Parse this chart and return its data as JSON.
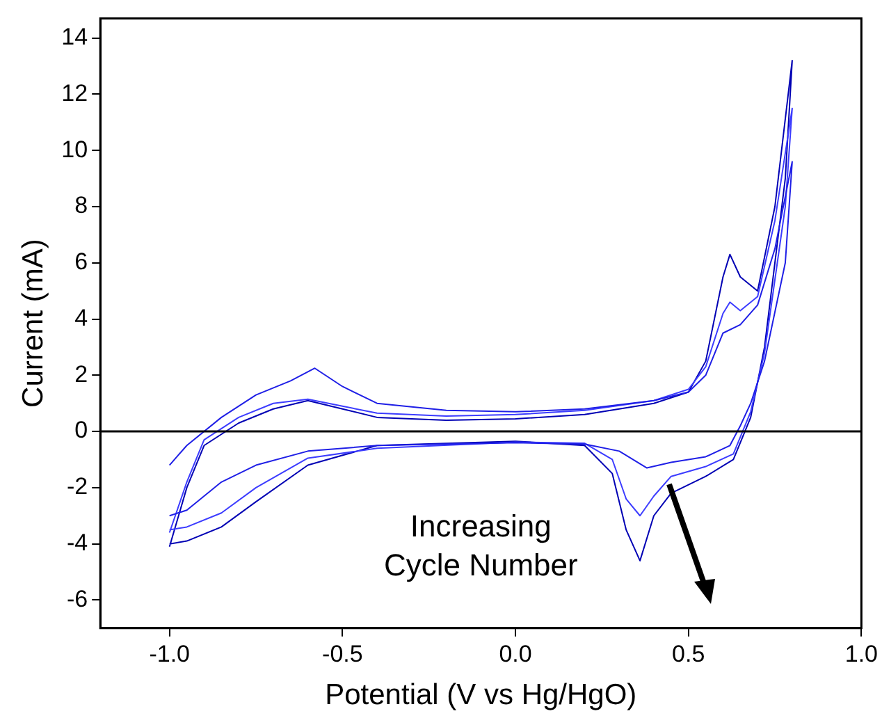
{
  "chart_data": {
    "type": "line",
    "xlabel": "Potential (V vs Hg/HgO)",
    "ylabel": "Current (mA)",
    "xlim": [
      -1.2,
      1.0
    ],
    "xticks": [
      {
        "value": -1.0,
        "label": "-1.0"
      },
      {
        "value": -0.5,
        "label": "-0.5"
      },
      {
        "value": 0,
        "label": "0.0"
      },
      {
        "value": 0.5,
        "label": "0.5"
      },
      {
        "value": 1.0,
        "label": "1.0"
      }
    ],
    "ylim": [
      -7,
      14.7
    ],
    "yticks": [
      -6,
      -4,
      -2,
      0,
      2,
      4,
      6,
      8,
      10,
      12,
      14
    ],
    "grid": false,
    "legend": false,
    "marker": "none",
    "line_style": "solid",
    "ref_lines": [
      {
        "axis": "y",
        "value": 0,
        "color": "#000000"
      }
    ],
    "annotations": [
      "Increasing Cycle Number"
    ],
    "series": [
      {
        "color": "#1f1fe6",
        "x": [
          -1.0,
          -0.95,
          -0.85,
          -0.75,
          -0.65,
          -0.58,
          -0.5,
          -0.4,
          -0.2,
          0,
          0.2,
          0.4,
          0.5,
          0.55,
          0.6,
          0.65,
          0.7,
          0.75,
          0.8,
          0.78,
          0.72,
          0.68,
          0.65,
          0.62,
          0.55,
          0.45,
          0.38,
          0.3,
          0.2,
          0,
          -0.4,
          -0.6,
          -0.75,
          -0.85,
          -0.95,
          -1.0
        ],
        "values": [
          -1.2,
          -0.5,
          0.5,
          1.3,
          1.8,
          2.25,
          1.6,
          1.0,
          0.75,
          0.7,
          0.8,
          1.1,
          1.4,
          2.0,
          3.5,
          3.8,
          4.5,
          6.5,
          9.6,
          6.0,
          2.5,
          1.0,
          0.2,
          -0.5,
          -0.9,
          -1.1,
          -1.3,
          -0.7,
          -0.45,
          -0.4,
          -0.5,
          -0.7,
          -1.2,
          -1.8,
          -2.8,
          -3.0
        ]
      },
      {
        "color": "#3c3cff",
        "x": [
          -1.0,
          -0.95,
          -0.9,
          -0.8,
          -0.7,
          -0.6,
          -0.5,
          -0.4,
          -0.2,
          0,
          0.2,
          0.4,
          0.5,
          0.55,
          0.6,
          0.62,
          0.65,
          0.7,
          0.75,
          0.8,
          0.78,
          0.72,
          0.68,
          0.63,
          0.55,
          0.45,
          0.4,
          0.36,
          0.32,
          0.28,
          0.2,
          0,
          -0.4,
          -0.6,
          -0.75,
          -0.85,
          -0.95,
          -1.0
        ],
        "values": [
          -3.6,
          -1.8,
          -0.3,
          0.5,
          1.0,
          1.15,
          0.9,
          0.65,
          0.55,
          0.6,
          0.75,
          1.1,
          1.5,
          2.3,
          4.2,
          4.6,
          4.3,
          4.8,
          7.5,
          11.5,
          8.0,
          2.8,
          0.7,
          -0.8,
          -1.25,
          -1.6,
          -2.3,
          -3.0,
          -2.4,
          -1.0,
          -0.42,
          -0.38,
          -0.6,
          -0.95,
          -2.0,
          -2.9,
          -3.4,
          -3.5
        ]
      },
      {
        "color": "#0000b4",
        "x": [
          -1.0,
          -0.95,
          -0.9,
          -0.8,
          -0.7,
          -0.6,
          -0.5,
          -0.4,
          -0.2,
          0,
          0.2,
          0.4,
          0.5,
          0.55,
          0.6,
          0.62,
          0.65,
          0.7,
          0.75,
          0.8,
          0.78,
          0.72,
          0.68,
          0.63,
          0.55,
          0.45,
          0.4,
          0.36,
          0.32,
          0.28,
          0.2,
          0,
          -0.4,
          -0.6,
          -0.75,
          -0.85,
          -0.95,
          -1.0
        ],
        "values": [
          -4.1,
          -2.0,
          -0.5,
          0.3,
          0.8,
          1.1,
          0.8,
          0.5,
          0.4,
          0.45,
          0.6,
          1.0,
          1.4,
          2.5,
          5.5,
          6.3,
          5.5,
          5.0,
          8.0,
          13.2,
          9.0,
          3.0,
          0.5,
          -1.0,
          -1.6,
          -2.2,
          -3.0,
          -4.6,
          -3.5,
          -1.5,
          -0.5,
          -0.35,
          -0.5,
          -1.2,
          -2.5,
          -3.4,
          -3.9,
          -4.0
        ]
      }
    ]
  }
}
